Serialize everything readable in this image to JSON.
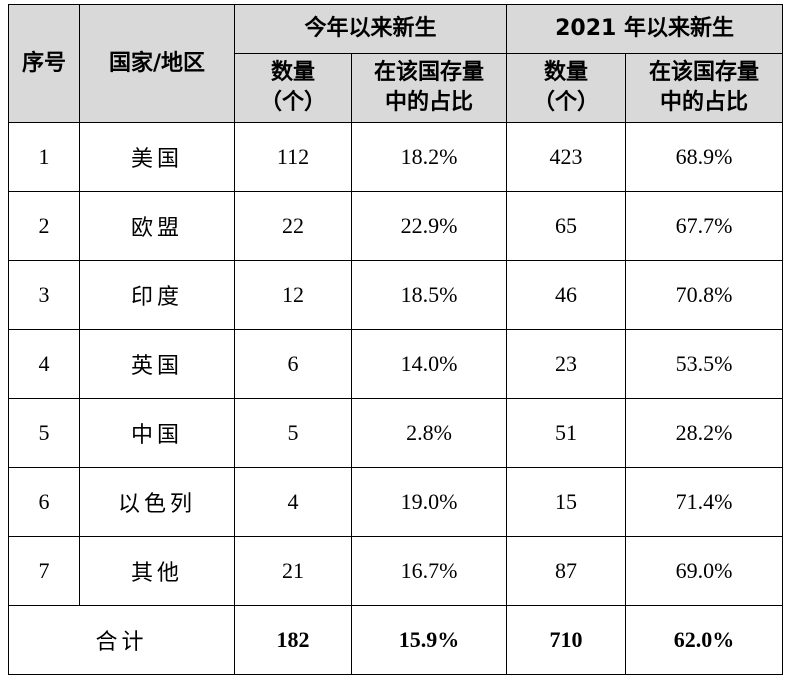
{
  "header": {
    "index": "序号",
    "region": "国家/地区",
    "group_this_year": "今年以来新生",
    "group_since_2021": "2021 年以来新生",
    "count_line1": "数量",
    "count_line2": "（个）",
    "share_line1": "在该国存量",
    "share_line2": "中的占比"
  },
  "rows": [
    {
      "index": "1",
      "country": "美国",
      "count_ytd": "112",
      "share_ytd": "18.2%",
      "count_2021": "423",
      "share_2021": "68.9%"
    },
    {
      "index": "2",
      "country": "欧盟",
      "count_ytd": "22",
      "share_ytd": "22.9%",
      "count_2021": "65",
      "share_2021": "67.7%"
    },
    {
      "index": "3",
      "country": "印度",
      "count_ytd": "12",
      "share_ytd": "18.5%",
      "count_2021": "46",
      "share_2021": "70.8%"
    },
    {
      "index": "4",
      "country": "英国",
      "count_ytd": "6",
      "share_ytd": "14.0%",
      "count_2021": "23",
      "share_2021": "53.5%"
    },
    {
      "index": "5",
      "country": "中国",
      "count_ytd": "5",
      "share_ytd": "2.8%",
      "count_2021": "51",
      "share_2021": "28.2%"
    },
    {
      "index": "6",
      "country": "以色列",
      "count_ytd": "4",
      "share_ytd": "19.0%",
      "count_2021": "15",
      "share_2021": "71.4%"
    },
    {
      "index": "7",
      "country": "其他",
      "count_ytd": "21",
      "share_ytd": "16.7%",
      "count_2021": "87",
      "share_2021": "69.0%"
    }
  ],
  "total": {
    "label": "合计",
    "count_ytd": "182",
    "share_ytd": "15.9%",
    "count_2021": "710",
    "share_2021": "62.0%"
  },
  "colors": {
    "header_bg": "#d9d9d9",
    "border": "#000000"
  }
}
